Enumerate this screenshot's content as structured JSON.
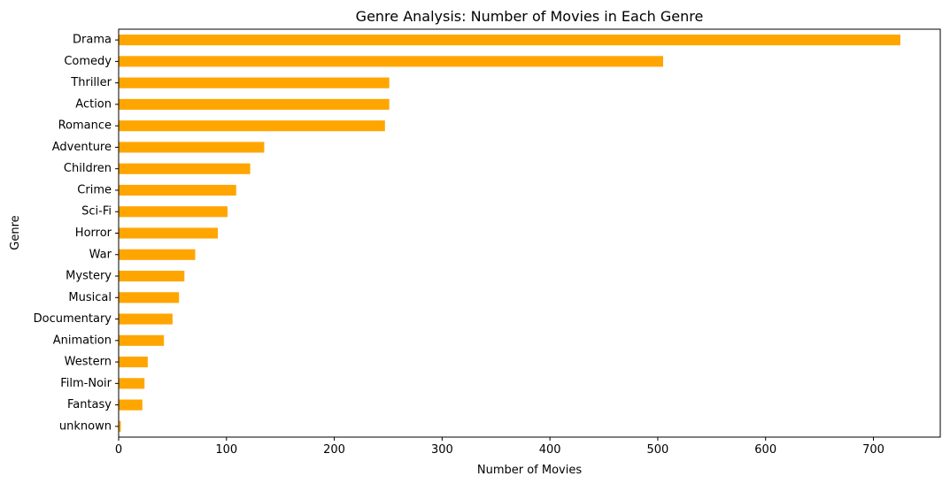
{
  "chart_data": {
    "type": "bar",
    "orientation": "horizontal",
    "title": "Genre Analysis: Number of Movies in Each Genre",
    "xlabel": "Number of Movies",
    "ylabel": "Genre",
    "categories": [
      "Drama",
      "Comedy",
      "Thriller",
      "Action",
      "Romance",
      "Adventure",
      "Children",
      "Crime",
      "Sci-Fi",
      "Horror",
      "War",
      "Mystery",
      "Musical",
      "Documentary",
      "Animation",
      "Western",
      "Film-Noir",
      "Fantasy",
      "unknown"
    ],
    "values": [
      725,
      505,
      251,
      251,
      247,
      135,
      122,
      109,
      101,
      92,
      71,
      61,
      56,
      50,
      42,
      27,
      24,
      22,
      2
    ],
    "xlim": [
      0,
      762
    ],
    "xticks": [
      0,
      100,
      200,
      300,
      400,
      500,
      600,
      700
    ],
    "grid": false,
    "bar_color": "#FFA500"
  }
}
